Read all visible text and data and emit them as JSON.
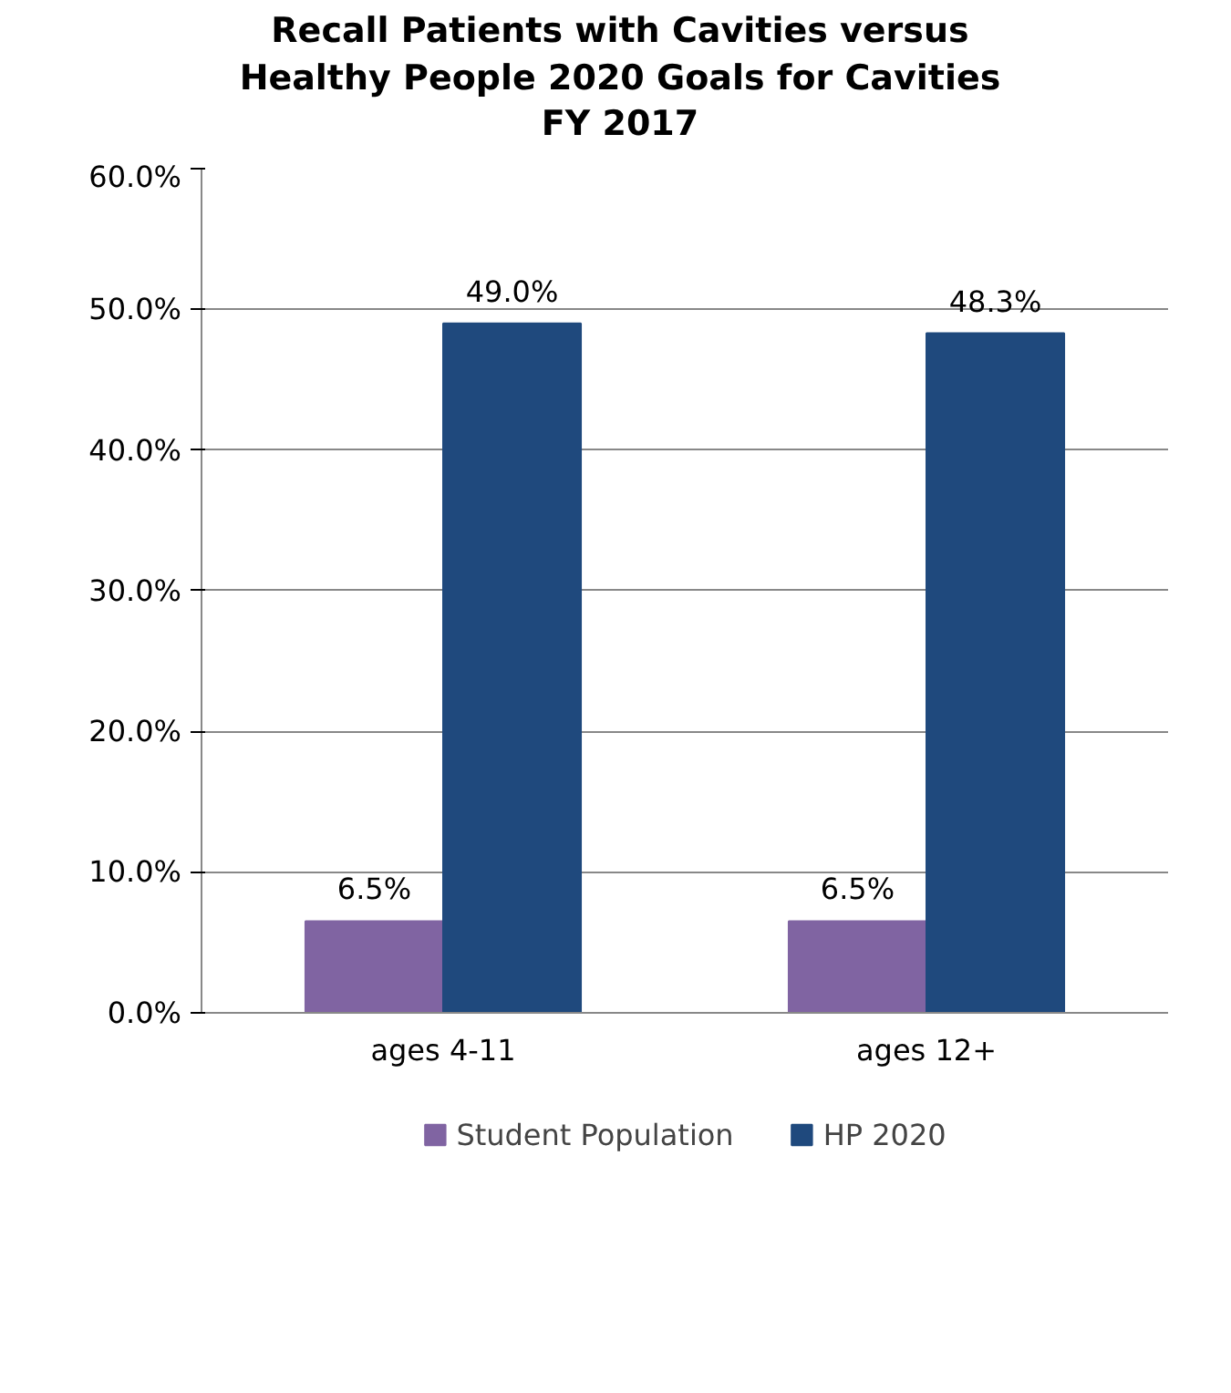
{
  "chart_data": {
    "type": "bar",
    "title": "Recall Patients with Cavities versus\nHealthy People 2020 Goals for Cavities\nFY 2017",
    "categories": [
      "ages 4-11",
      "ages 12+"
    ],
    "series": [
      {
        "name": "Student Population",
        "color": "#8064a2",
        "values": [
          6.5,
          6.5
        ],
        "value_labels": [
          "6.5%",
          "6.5%"
        ]
      },
      {
        "name": "HP 2020",
        "color": "#1f497d",
        "values": [
          49.0,
          48.3
        ],
        "value_labels": [
          "49.0%",
          "48.3%"
        ]
      }
    ],
    "ylim": [
      0,
      60
    ],
    "yticks": [
      {
        "value": 0,
        "label": "0.0%"
      },
      {
        "value": 10,
        "label": "10.0%"
      },
      {
        "value": 20,
        "label": "20.0%"
      },
      {
        "value": 30,
        "label": "30.0%"
      },
      {
        "value": 40,
        "label": "40.0%"
      },
      {
        "value": 50,
        "label": "50.0%"
      },
      {
        "value": 60,
        "label": "60.0%"
      }
    ],
    "grid": "y",
    "legend": "bottom"
  }
}
